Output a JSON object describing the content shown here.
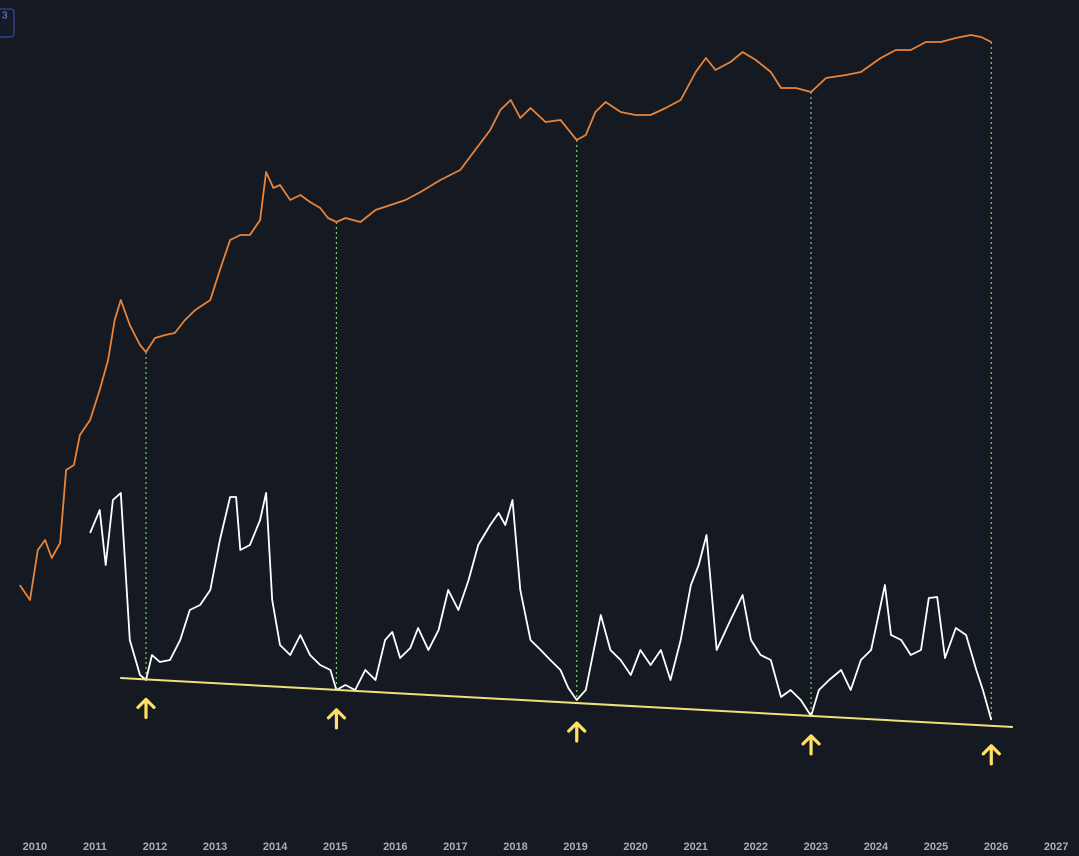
{
  "chart_data": {
    "type": "line",
    "corner_label": "3",
    "xlim": [
      2009.42,
      2027.38
    ],
    "xticks": [
      2010,
      2011,
      2012,
      2013,
      2014,
      2015,
      2016,
      2017,
      2018,
      2019,
      2020,
      2021,
      2022,
      2023,
      2024,
      2025,
      2026,
      2027
    ],
    "ylim": [
      0,
      856
    ],
    "series": [
      {
        "color": "#e8843a",
        "x": [
          2009.75,
          2009.92,
          2010.05,
          2010.17,
          2010.28,
          2010.42,
          2010.52,
          2010.65,
          2010.75,
          2010.92,
          2011.08,
          2011.22,
          2011.33,
          2011.43,
          2011.58,
          2011.75,
          2011.85,
          2012.0,
          2012.17,
          2012.33,
          2012.5,
          2012.67,
          2012.92,
          2013.08,
          2013.25,
          2013.42,
          2013.58,
          2013.75,
          2013.85,
          2013.97,
          2014.08,
          2014.25,
          2014.42,
          2014.58,
          2014.75,
          2014.88,
          2015.02,
          2015.17,
          2015.42,
          2015.67,
          2015.92,
          2016.17,
          2016.42,
          2016.75,
          2017.08,
          2017.33,
          2017.58,
          2017.75,
          2017.92,
          2018.08,
          2018.25,
          2018.5,
          2018.75,
          2019.02,
          2019.17,
          2019.33,
          2019.5,
          2019.75,
          2020.0,
          2020.25,
          2020.5,
          2020.75,
          2021.0,
          2021.17,
          2021.33,
          2021.58,
          2021.78,
          2022.0,
          2022.25,
          2022.42,
          2022.67,
          2022.92,
          2023.17,
          2023.5,
          2023.75,
          2024.08,
          2024.33,
          2024.58,
          2024.83,
          2025.08,
          2025.33,
          2025.58,
          2025.75,
          2025.92
        ],
        "values": [
          271,
          256,
          306,
          316,
          298,
          313,
          386,
          391,
          421,
          436,
          466,
          496,
          536,
          556,
          531,
          511,
          504,
          518,
          521,
          523,
          536,
          546,
          556,
          586,
          616,
          621,
          621,
          636,
          684,
          668,
          671,
          656,
          661,
          654,
          648,
          638,
          634,
          638,
          634,
          646,
          651,
          656,
          664,
          676,
          686,
          706,
          726,
          746,
          756,
          738,
          748,
          734,
          736,
          716,
          721,
          744,
          754,
          744,
          741,
          741,
          748,
          756,
          784,
          798,
          786,
          794,
          804,
          796,
          784,
          768,
          768,
          764,
          778,
          781,
          784,
          798,
          806,
          806,
          814,
          814,
          818,
          821,
          819,
          814
        ]
      },
      {
        "color": "#ffffff",
        "x": [
          2010.92,
          2011.08,
          2011.18,
          2011.3,
          2011.43,
          2011.58,
          2011.75,
          2011.85,
          2011.95,
          2012.08,
          2012.25,
          2012.42,
          2012.58,
          2012.75,
          2012.92,
          2013.08,
          2013.25,
          2013.35,
          2013.42,
          2013.58,
          2013.75,
          2013.85,
          2013.95,
          2014.08,
          2014.25,
          2014.42,
          2014.58,
          2014.75,
          2014.92,
          2015.02,
          2015.17,
          2015.33,
          2015.5,
          2015.67,
          2015.83,
          2015.95,
          2016.08,
          2016.25,
          2016.38,
          2016.55,
          2016.72,
          2016.88,
          2017.05,
          2017.22,
          2017.38,
          2017.58,
          2017.72,
          2017.83,
          2017.95,
          2018.08,
          2018.25,
          2018.42,
          2018.58,
          2018.75,
          2018.88,
          2019.02,
          2019.17,
          2019.42,
          2019.58,
          2019.75,
          2019.92,
          2020.08,
          2020.25,
          2020.42,
          2020.58,
          2020.75,
          2020.92,
          2021.05,
          2021.18,
          2021.35,
          2021.58,
          2021.78,
          2021.92,
          2022.08,
          2022.25,
          2022.42,
          2022.58,
          2022.75,
          2022.92,
          2023.05,
          2023.22,
          2023.42,
          2023.58,
          2023.75,
          2023.92,
          2024.08,
          2024.15,
          2024.25,
          2024.42,
          2024.58,
          2024.75,
          2024.88,
          2025.02,
          2025.15,
          2025.33,
          2025.5,
          2025.67,
          2025.78,
          2025.92
        ],
        "values": [
          323,
          346,
          291,
          356,
          363,
          216,
          181,
          176,
          201,
          194,
          196,
          216,
          246,
          251,
          266,
          316,
          359,
          359,
          306,
          311,
          336,
          363,
          256,
          211,
          201,
          221,
          201,
          191,
          186,
          166,
          171,
          166,
          186,
          176,
          216,
          224,
          198,
          208,
          228,
          206,
          226,
          266,
          246,
          276,
          311,
          331,
          343,
          331,
          356,
          266,
          216,
          206,
          196,
          186,
          168,
          156,
          166,
          241,
          206,
          196,
          181,
          206,
          191,
          206,
          176,
          216,
          271,
          291,
          321,
          206,
          236,
          261,
          216,
          201,
          196,
          159,
          166,
          156,
          140,
          166,
          176,
          186,
          166,
          196,
          206,
          251,
          271,
          221,
          216,
          201,
          206,
          258,
          259,
          198,
          228,
          221,
          186,
          166,
          136
        ]
      }
    ],
    "trendline": {
      "color": "#f0e07a",
      "x": [
        2011.42,
        2026.28
      ],
      "values": [
        178,
        129
      ]
    },
    "markers": {
      "color": "#ffe066",
      "guide_color": "#7bd36a",
      "x": [
        2011.85,
        2015.02,
        2019.02,
        2022.92,
        2025.92
      ]
    }
  }
}
